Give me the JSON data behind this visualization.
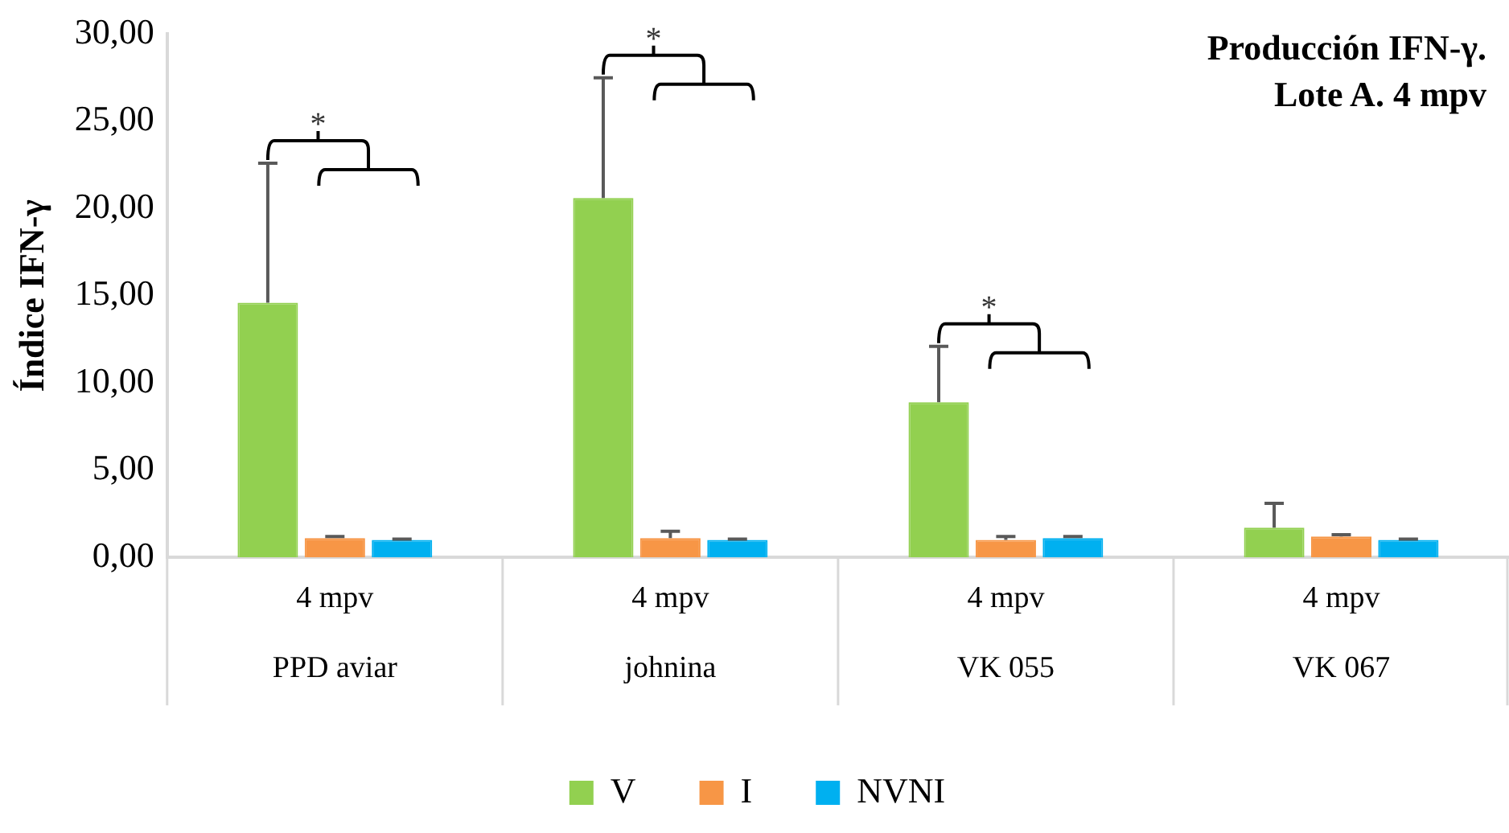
{
  "chart_data": {
    "type": "bar",
    "title": "Producción IFN-γ.\nLote A. 4 mpv",
    "ylabel": "Índice IFN-γ",
    "categories": [
      "4 mpv\nPPD aviar",
      "4 mpv\njohnina",
      "4 mpv\nVK 055",
      "4 mpv\nVK 067"
    ],
    "series": [
      {
        "name": "V",
        "color": "#92d050",
        "values": [
          14.6,
          20.6,
          8.9,
          1.7
        ],
        "errors": [
          [
            14.6,
            22.6
          ],
          [
            20.6,
            27.5
          ],
          [
            8.9,
            12.1
          ],
          [
            1.7,
            3.1
          ]
        ]
      },
      {
        "name": "I",
        "color": "#f79646",
        "values": [
          1.1,
          1.1,
          1.0,
          1.2
        ],
        "errors": [
          [
            1.1,
            1.2
          ],
          [
            1.1,
            1.5
          ],
          [
            1.0,
            1.2
          ],
          [
            1.2,
            1.3
          ]
        ]
      },
      {
        "name": "NVNI",
        "color": "#00b0f0",
        "values": [
          1.0,
          1.0,
          1.1,
          1.0
        ],
        "errors": [
          [
            1.0,
            1.05
          ],
          [
            1.0,
            1.05
          ],
          [
            1.1,
            1.2
          ],
          [
            1.0,
            1.05
          ]
        ]
      }
    ],
    "ylim": [
      0,
      30
    ],
    "yticks": [
      {
        "value": 0,
        "label": "0,00"
      },
      {
        "value": 5,
        "label": "5,00"
      },
      {
        "value": 10,
        "label": "10,00"
      },
      {
        "value": 15,
        "label": "15,00"
      },
      {
        "value": 20,
        "label": "20,00"
      },
      {
        "value": 25,
        "label": "25,00"
      },
      {
        "value": 30,
        "label": "30,00"
      }
    ],
    "annotations": [
      "*",
      "*",
      "*"
    ],
    "grid": false,
    "legend": "bottom"
  }
}
